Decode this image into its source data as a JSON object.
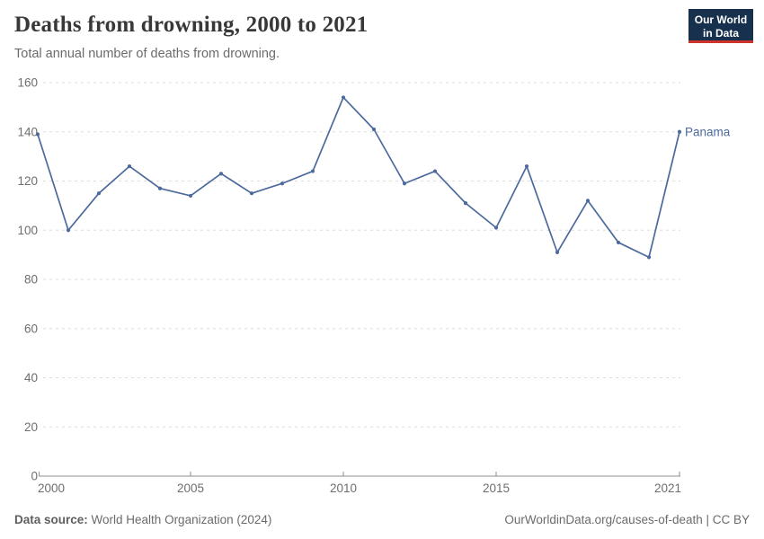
{
  "header": {
    "title": "Deaths from drowning, 2000 to 2021",
    "subtitle": "Total annual number of deaths from drowning."
  },
  "logo": {
    "line1": "Our World",
    "line2": "in Data"
  },
  "footer": {
    "source_label": "Data source:",
    "source_value": " World Health Organization (2024)",
    "right": "OurWorldinData.org/causes-of-death | CC BY"
  },
  "colors": {
    "line": "#4C6A9C",
    "series_label": "#4C6A9C",
    "grid": "#dddddd",
    "axis": "#8f8f8f",
    "tick_label": "#6e6e6e",
    "logo_navy": "#17304e",
    "logo_red": "#cf342c"
  },
  "chart_data": {
    "type": "line",
    "title": "Deaths from drowning, 2000 to 2021",
    "subtitle": "Total annual number of deaths from drowning.",
    "xlabel": "",
    "ylabel": "",
    "xlim": [
      2000,
      2021
    ],
    "ylim": [
      0,
      160
    ],
    "xticks": [
      2000,
      2005,
      2010,
      2015,
      2021
    ],
    "yticks": [
      0,
      20,
      40,
      60,
      80,
      100,
      120,
      140,
      160
    ],
    "grid": "horizontal-dashed",
    "legend_position": "end-of-line",
    "series": [
      {
        "name": "Panama",
        "x": [
          2000,
          2001,
          2002,
          2003,
          2004,
          2005,
          2006,
          2007,
          2008,
          2009,
          2010,
          2011,
          2012,
          2013,
          2014,
          2015,
          2016,
          2017,
          2018,
          2019,
          2020,
          2021
        ],
        "values": [
          139,
          100,
          115,
          126,
          117,
          114,
          123,
          115,
          119,
          124,
          154,
          141,
          119,
          124,
          111,
          101,
          126,
          91,
          112,
          95,
          89,
          140
        ]
      }
    ]
  }
}
